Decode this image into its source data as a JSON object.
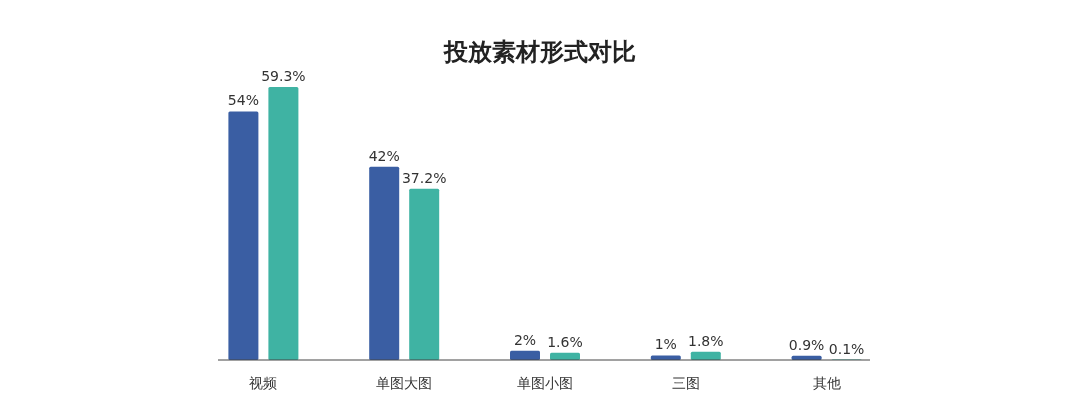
{
  "chart_data": {
    "type": "bar",
    "title": "投放素材形式对比",
    "categories": [
      "视频",
      "单图大图",
      "单图小图",
      "三图",
      "其他"
    ],
    "series": [
      {
        "color": "#3a5ea3",
        "values": [
          54,
          42,
          2,
          1,
          0.9
        ],
        "value_labels": [
          "54%",
          "42%",
          "2%",
          "1%",
          "0.9%"
        ]
      },
      {
        "color": "#3fb3a3",
        "values": [
          59.3,
          37.2,
          1.6,
          1.8,
          0.1
        ],
        "value_labels": [
          "59.3%",
          "37.2%",
          "1.6%",
          "1.8%",
          "0.1%"
        ]
      }
    ]
  }
}
